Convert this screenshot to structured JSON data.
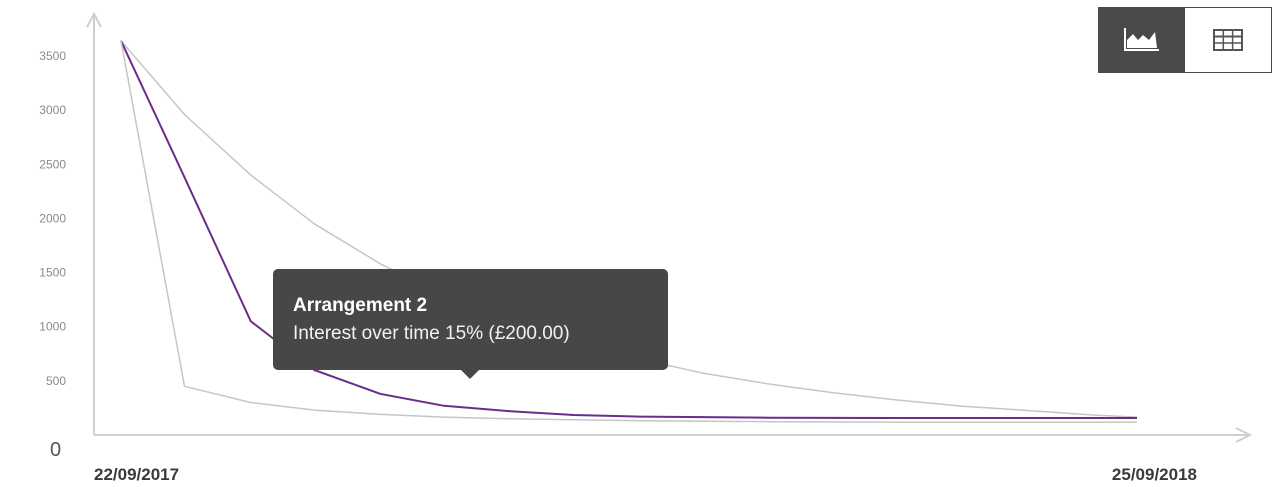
{
  "chart_data": {
    "type": "line",
    "title": "",
    "xlabel": "",
    "ylabel": "",
    "ylim": [
      0,
      3700
    ],
    "y_ticks": [
      0,
      500,
      1000,
      1500,
      2000,
      2500,
      3000,
      3500
    ],
    "y_tick_labels": [
      "0",
      "500",
      "1000",
      "1500",
      "2000",
      "2500",
      "3000",
      "3500"
    ],
    "x_range": [
      "22/09/2017",
      "25/09/2018"
    ],
    "x_tick_labels": [
      "22/09/2017",
      "25/09/2018"
    ],
    "grid": false,
    "series": [
      {
        "color": "#c6c6c6",
        "x": [
          "22/09/2017",
          "15/10/2017",
          "08/11/2017",
          "01/12/2017",
          "25/12/2017",
          "17/01/2018",
          "10/02/2018",
          "05/03/2018",
          "29/03/2018",
          "21/04/2018",
          "15/05/2018",
          "07/06/2018",
          "01/07/2018",
          "24/07/2018",
          "17/08/2018",
          "09/09/2018",
          "25/09/2018"
        ],
        "y": [
          3640,
          2960,
          2400,
          1950,
          1580,
          1290,
          1050,
          860,
          700,
          570,
          470,
          390,
          320,
          265,
          225,
          185,
          165
        ]
      },
      {
        "color": "#6b2d8c",
        "x": [
          "22/09/2017",
          "15/10/2017",
          "08/11/2017",
          "01/12/2017",
          "25/12/2017",
          "17/01/2018",
          "10/02/2018",
          "05/03/2018",
          "29/03/2018",
          "21/04/2018",
          "15/05/2018",
          "07/06/2018",
          "01/07/2018",
          "24/07/2018",
          "17/08/2018",
          "09/09/2018",
          "25/09/2018"
        ],
        "y": [
          3640,
          2380,
          1050,
          600,
          380,
          270,
          220,
          185,
          170,
          165,
          160,
          158,
          157,
          157,
          157,
          157,
          157
        ]
      },
      {
        "color": "#c6c6c6",
        "x": [
          "22/09/2017",
          "15/10/2017",
          "08/11/2017",
          "01/12/2017",
          "25/12/2017",
          "17/01/2018",
          "10/02/2018",
          "05/03/2018",
          "29/03/2018",
          "21/04/2018",
          "15/05/2018",
          "07/06/2018",
          "01/07/2018",
          "24/07/2018",
          "17/08/2018",
          "09/09/2018",
          "25/09/2018"
        ],
        "y": [
          3640,
          450,
          300,
          230,
          190,
          165,
          150,
          140,
          132,
          127,
          123,
          120,
          118,
          117,
          117,
          117,
          117
        ]
      }
    ]
  },
  "tooltip": {
    "title": "Arrangement 2",
    "body": "Interest over time 15% (£200.00)"
  },
  "view_toggle": {
    "active": "chart",
    "icons": [
      "area-chart-icon",
      "table-grid-icon"
    ]
  }
}
